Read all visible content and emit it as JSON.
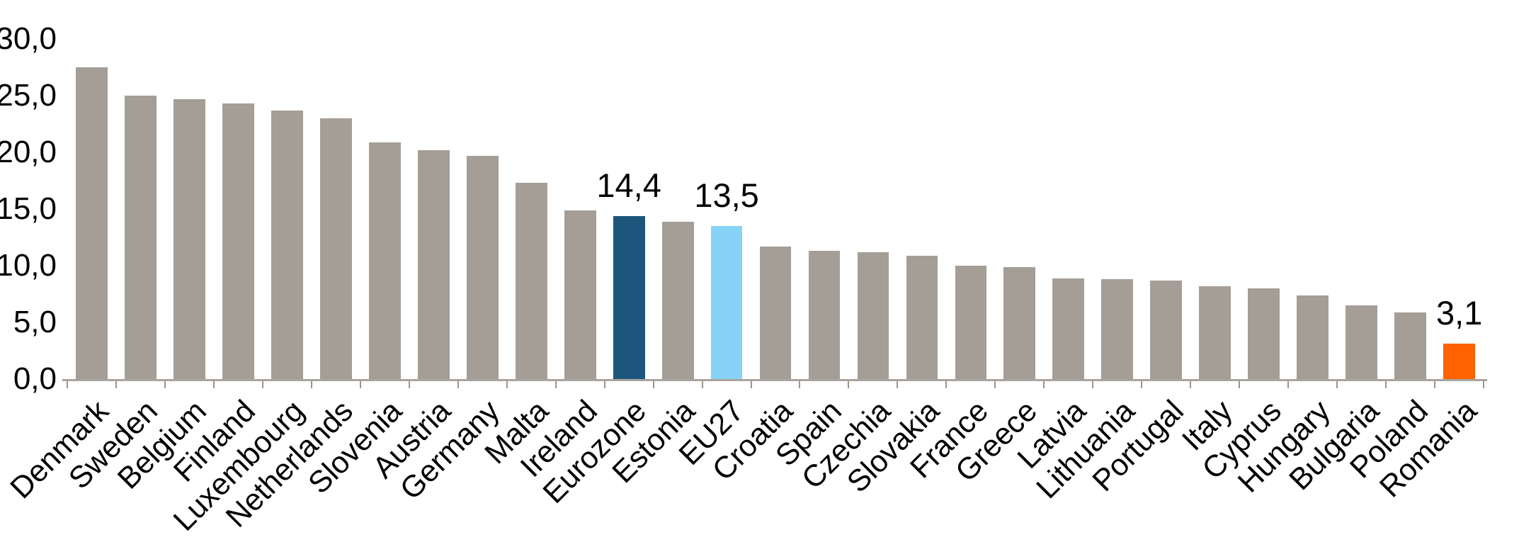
{
  "chart_data": {
    "type": "bar",
    "title": "",
    "xlabel": "",
    "ylabel": "",
    "grid": "off",
    "legend": "none",
    "decimal_style": "comma",
    "y_axis": {
      "min": 0,
      "max": 30,
      "step": 5,
      "ticks": [
        {
          "label": "0,0",
          "value": 0
        },
        {
          "label": "5,0",
          "value": 5
        },
        {
          "label": "10,0",
          "value": 10
        },
        {
          "label": "15,0",
          "value": 15
        },
        {
          "label": "20,0",
          "value": 20
        },
        {
          "label": "25,0",
          "value": 25
        },
        {
          "label": "30,0",
          "value": 30
        }
      ]
    },
    "bars": [
      {
        "name": "Denmark",
        "value": 27.5,
        "color": "default"
      },
      {
        "name": "Sweden",
        "value": 25.0,
        "color": "default"
      },
      {
        "name": "Belgium",
        "value": 24.7,
        "color": "default"
      },
      {
        "name": "Finland",
        "value": 24.3,
        "color": "default"
      },
      {
        "name": "Luxembourg",
        "value": 23.7,
        "color": "default"
      },
      {
        "name": "Netherlands",
        "value": 23.0,
        "color": "default"
      },
      {
        "name": "Slovenia",
        "value": 20.9,
        "color": "default"
      },
      {
        "name": "Austria",
        "value": 20.2,
        "color": "default"
      },
      {
        "name": "Germany",
        "value": 19.7,
        "color": "default"
      },
      {
        "name": "Malta",
        "value": 17.3,
        "color": "default"
      },
      {
        "name": "Ireland",
        "value": 14.9,
        "color": "default"
      },
      {
        "name": "Eurozone",
        "value": 14.4,
        "color": "highlight_dark_blue",
        "data_label": "14,4"
      },
      {
        "name": "Estonia",
        "value": 13.9,
        "color": "default"
      },
      {
        "name": "EU27",
        "value": 13.5,
        "color": "highlight_light_blue",
        "data_label": "13,5"
      },
      {
        "name": "Croatia",
        "value": 11.7,
        "color": "default"
      },
      {
        "name": "Spain",
        "value": 11.3,
        "color": "default"
      },
      {
        "name": "Czechia",
        "value": 11.2,
        "color": "default"
      },
      {
        "name": "Slovakia",
        "value": 10.9,
        "color": "default"
      },
      {
        "name": "France",
        "value": 10.0,
        "color": "default"
      },
      {
        "name": "Greece",
        "value": 9.9,
        "color": "default"
      },
      {
        "name": "Latvia",
        "value": 8.9,
        "color": "default"
      },
      {
        "name": "Lithuania",
        "value": 8.8,
        "color": "default"
      },
      {
        "name": "Portugal",
        "value": 8.7,
        "color": "default"
      },
      {
        "name": "Italy",
        "value": 8.2,
        "color": "default"
      },
      {
        "name": "Cyprus",
        "value": 8.0,
        "color": "default"
      },
      {
        "name": "Hungary",
        "value": 7.4,
        "color": "default"
      },
      {
        "name": "Bulgaria",
        "value": 6.5,
        "color": "default"
      },
      {
        "name": "Poland",
        "value": 5.9,
        "color": "default"
      },
      {
        "name": "Romania",
        "value": 3.1,
        "color": "highlight_orange",
        "data_label": "3,1"
      }
    ]
  },
  "colors": {
    "default": "#a49e96",
    "highlight_dark_blue": "#1d567d",
    "highlight_light_blue": "#87d3f7",
    "highlight_orange": "#ff6200",
    "axis": "#a9a49e",
    "tick": "#9b968f",
    "text": "#000000",
    "background": "#ffffff"
  }
}
